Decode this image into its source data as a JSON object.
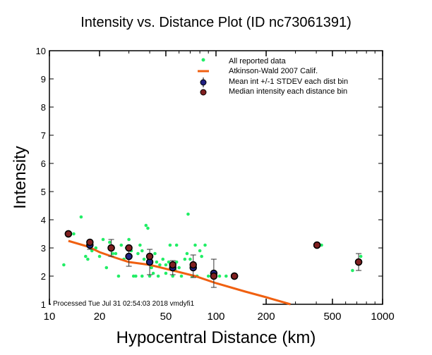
{
  "chart_data": {
    "type": "scatter",
    "title": "Intensity vs. Distance Plot (ID nc73061391)",
    "xlabel": "Hypocentral Distance (km)",
    "ylabel": "Intensity",
    "xscale": "log",
    "xlim": [
      10,
      1000
    ],
    "ylim": [
      1,
      10
    ],
    "x_ticks": [
      "10",
      "20",
      "50",
      "100",
      "200",
      "500",
      "1000"
    ],
    "y_ticks": [
      "1",
      "2",
      "3",
      "4",
      "5",
      "6",
      "7",
      "8",
      "9",
      "10"
    ],
    "legend_placement": "top-right",
    "legend": [
      "All reported data",
      "Atkinson-Wald 2007 Calif.",
      "Mean int +/-1 STDEV each dist bin",
      "Median intensity each distance bin"
    ],
    "footer": "Processed Tue Jul 31 02:54:03 2018 vmdyfi1",
    "colors": {
      "all": "#22ee66",
      "model": "#f06010",
      "mean": "#202080",
      "median": "#802020"
    },
    "all_reported": [
      [
        12.2,
        2.4
      ],
      [
        14,
        3.5
      ],
      [
        15.5,
        4.1
      ],
      [
        16.5,
        2.7
      ],
      [
        17,
        2.6
      ],
      [
        18,
        2.9
      ],
      [
        19,
        3.0
      ],
      [
        20,
        2.7
      ],
      [
        21,
        3.3
      ],
      [
        22,
        2.3
      ],
      [
        23,
        3.2
      ],
      [
        24,
        2.8
      ],
      [
        25,
        2.8
      ],
      [
        26,
        2.0
      ],
      [
        27,
        3.1
      ],
      [
        28,
        2.6
      ],
      [
        29,
        3.0
      ],
      [
        30,
        3.3
      ],
      [
        31,
        2.9
      ],
      [
        32,
        2.0
      ],
      [
        33,
        2.0
      ],
      [
        34,
        2.8
      ],
      [
        35,
        3.1
      ],
      [
        36,
        2.0
      ],
      [
        36,
        2.9
      ],
      [
        37,
        2.6
      ],
      [
        38,
        3.8
      ],
      [
        39,
        3.7
      ],
      [
        40,
        2.0
      ],
      [
        41,
        2.3
      ],
      [
        42,
        2.1
      ],
      [
        43,
        2.8
      ],
      [
        44,
        2.5
      ],
      [
        45,
        2.0
      ],
      [
        46,
        2.4
      ],
      [
        48,
        2.6
      ],
      [
        50,
        2.1
      ],
      [
        50,
        2.4
      ],
      [
        52,
        2.5
      ],
      [
        53,
        3.1
      ],
      [
        55,
        2.0
      ],
      [
        57,
        2.2
      ],
      [
        58,
        2.5
      ],
      [
        58,
        3.1
      ],
      [
        60,
        2.3
      ],
      [
        62,
        2.0
      ],
      [
        65,
        2.6
      ],
      [
        66,
        1.0
      ],
      [
        67,
        2.8
      ],
      [
        68,
        4.2
      ],
      [
        70,
        2.6
      ],
      [
        70,
        1.0
      ],
      [
        72,
        2.0
      ],
      [
        75,
        3.1
      ],
      [
        77,
        2.0
      ],
      [
        80,
        2.9
      ],
      [
        82,
        2.7
      ],
      [
        86,
        3.1
      ],
      [
        90,
        2.0
      ],
      [
        94,
        2.0
      ],
      [
        96,
        1.0
      ],
      [
        98,
        2.1
      ],
      [
        105,
        2.0
      ],
      [
        115,
        2.0
      ],
      [
        430,
        3.1
      ],
      [
        660,
        2.2
      ],
      [
        740,
        2.7
      ]
    ],
    "model_curve": [
      [
        13,
        3.25
      ],
      [
        17,
        3.05
      ],
      [
        20,
        2.85
      ],
      [
        25,
        2.65
      ],
      [
        30,
        2.5
      ],
      [
        40,
        2.4
      ],
      [
        55,
        2.2
      ],
      [
        75,
        2.0
      ],
      [
        100,
        1.75
      ],
      [
        150,
        1.45
      ],
      [
        200,
        1.25
      ],
      [
        280,
        1.0
      ]
    ],
    "bins": [
      {
        "x": 13,
        "mean": 3.5,
        "median": 3.5,
        "lo": 3.45,
        "hi": 3.55
      },
      {
        "x": 17.5,
        "mean": 3.1,
        "median": 3.2,
        "lo": 2.95,
        "hi": 3.25
      },
      {
        "x": 23.5,
        "mean": 3.0,
        "median": 3.0,
        "lo": 2.7,
        "hi": 3.3
      },
      {
        "x": 30,
        "mean": 2.7,
        "median": 3.0,
        "lo": 2.35,
        "hi": 3.05
      },
      {
        "x": 40,
        "mean": 2.5,
        "median": 2.7,
        "lo": 2.05,
        "hi": 2.95
      },
      {
        "x": 55,
        "mean": 2.3,
        "median": 2.4,
        "lo": 2.05,
        "hi": 2.55
      },
      {
        "x": 73,
        "mean": 2.3,
        "median": 2.4,
        "lo": 1.95,
        "hi": 2.75
      },
      {
        "x": 97,
        "mean": 2.1,
        "median": 2.0,
        "lo": 1.6,
        "hi": 2.6
      },
      {
        "x": 129,
        "mean": 2.0,
        "median": 2.0,
        "lo": 2.0,
        "hi": 2.0
      },
      {
        "x": 404,
        "mean": 3.1,
        "median": 3.1,
        "lo": 3.1,
        "hi": 3.1
      },
      {
        "x": 718,
        "mean": 2.5,
        "median": 2.5,
        "lo": 2.2,
        "hi": 2.8
      }
    ]
  }
}
